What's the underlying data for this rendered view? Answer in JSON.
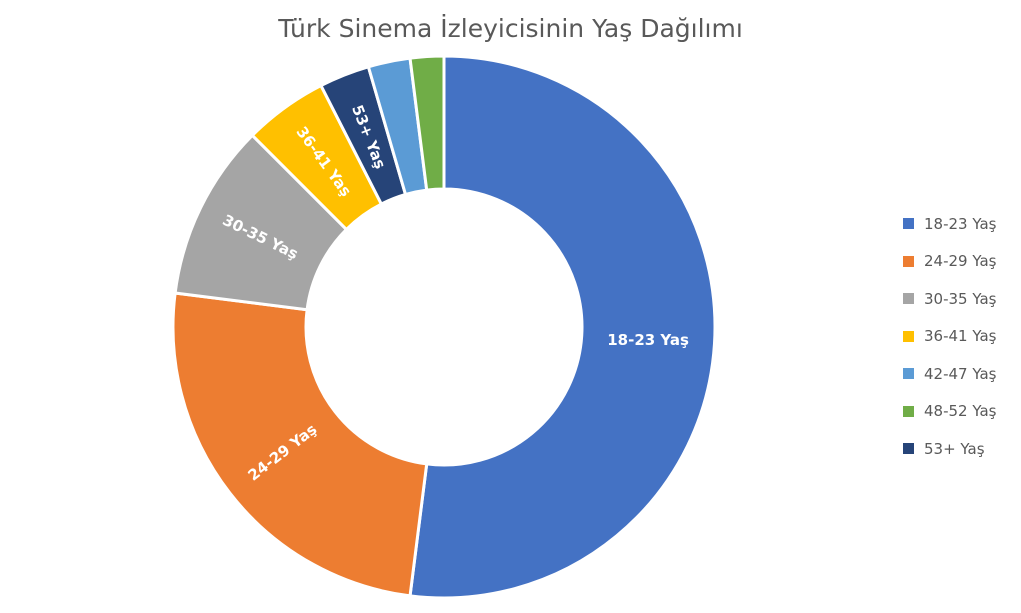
{
  "chart_data": {
    "type": "pie",
    "variant": "doughnut",
    "title": "Türk Sinema İzleyicisinin Yaş Dağılımı",
    "legend_position": "right",
    "series": [
      {
        "label": "18-23 Yaş",
        "value": 52.0,
        "color": "#4472C4",
        "data_label": "18-23 Yaş"
      },
      {
        "label": "24-29 Yaş",
        "value": 25.0,
        "color": "#ED7D31",
        "data_label": "24-29 Yaş"
      },
      {
        "label": "30-35 Yaş",
        "value": 10.5,
        "color": "#A5A5A5",
        "data_label": "30-35 Yaş"
      },
      {
        "label": "36-41 Yaş",
        "value": 5.0,
        "color": "#FFC000",
        "data_label": "36-41 Yaş"
      },
      {
        "label": "53+ Yaş",
        "value": 3.0,
        "color": "#264478",
        "data_label": "53+ Yaş"
      },
      {
        "label": "42-47 Yaş",
        "value": 2.5,
        "color": "#5B9BD5",
        "data_label": ""
      },
      {
        "label": "48-52 Yaş",
        "value": 2.0,
        "color": "#70AD47",
        "data_label": ""
      }
    ],
    "legend_order": [
      "18-23 Yaş",
      "24-29 Yaş",
      "30-35 Yaş",
      "36-41 Yaş",
      "42-47 Yaş",
      "48-52 Yaş",
      "53+ Yaş"
    ]
  }
}
